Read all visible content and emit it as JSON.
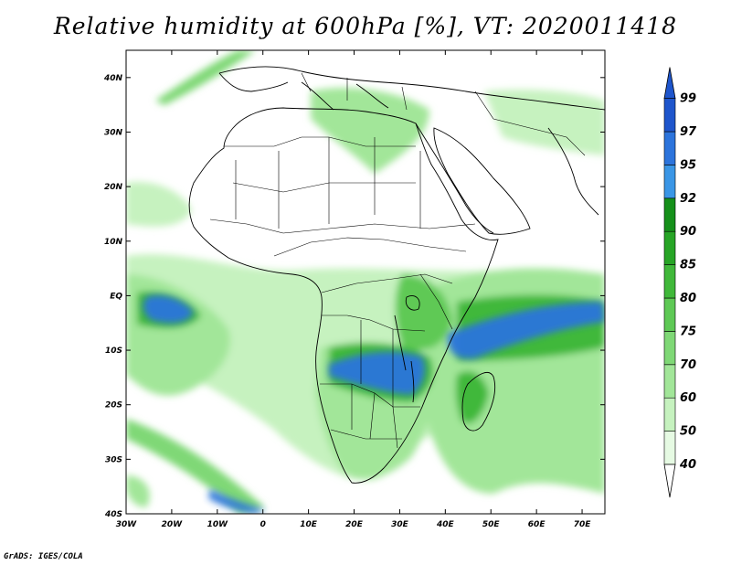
{
  "title": "Relative humidity at 600hPa [%], VT: 2020011418",
  "credit": "GrADS: IGES/COLA",
  "map": {
    "lon_labels": [
      "30W",
      "20W",
      "10W",
      "0",
      "10E",
      "20E",
      "30E",
      "40E",
      "50E",
      "60E",
      "70E"
    ],
    "lat_labels": [
      "40N",
      "30N",
      "20N",
      "10N",
      "EQ",
      "10S",
      "20S",
      "30S",
      "40S"
    ],
    "lon_range": [
      -30,
      75
    ],
    "lat_range": [
      -40,
      45
    ]
  },
  "legend": {
    "levels": [
      "40",
      "50",
      "60",
      "70",
      "75",
      "80",
      "85",
      "90",
      "92",
      "95",
      "97",
      "99"
    ],
    "colors": [
      "#ffffff",
      "#e6fae3",
      "#c6f2bf",
      "#a2e699",
      "#7fd876",
      "#5ec955",
      "#40b83a",
      "#27a526",
      "#15901a",
      "#3a96e6",
      "#2c74dc",
      "#1e55cc"
    ]
  }
}
